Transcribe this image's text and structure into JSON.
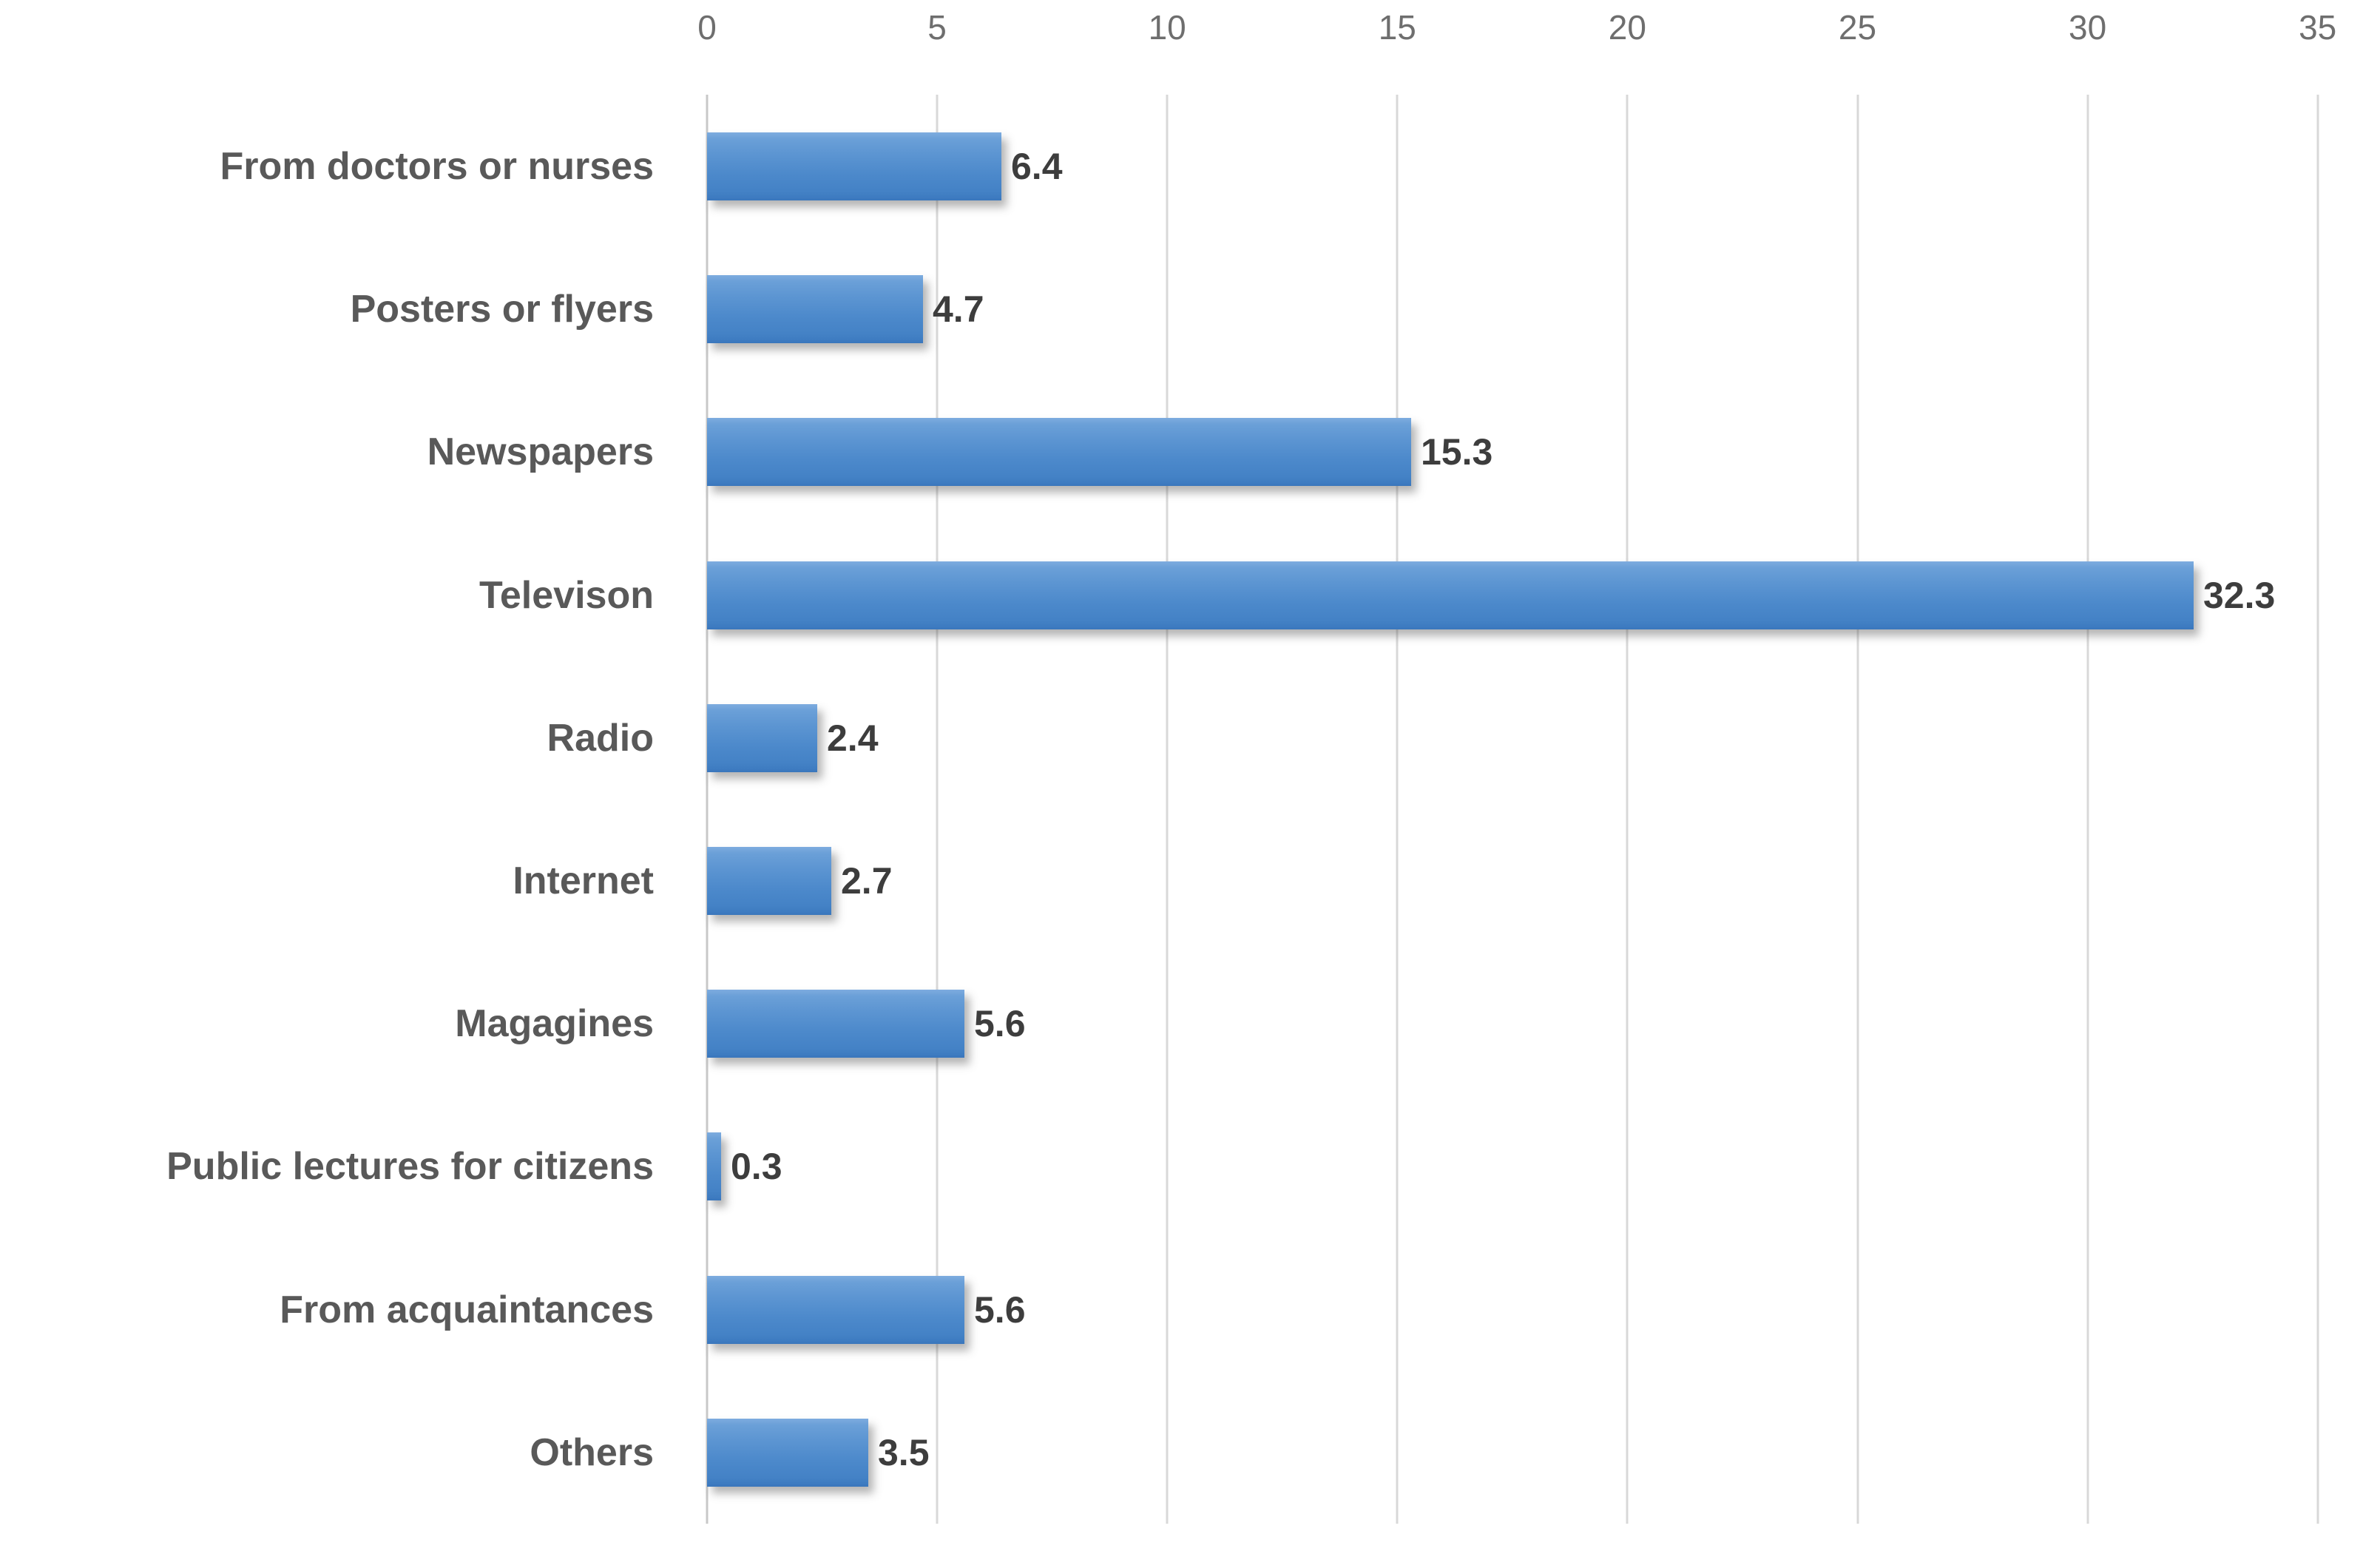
{
  "chart_data": {
    "type": "bar",
    "orientation": "horizontal",
    "title": "",
    "categories": [
      "From doctors or nurses",
      "Posters or flyers",
      "Newspapers",
      "Televison",
      "Radio",
      "Internet",
      "Magagines",
      "Public lectures for citizens",
      "From acquaintances",
      "Others"
    ],
    "values": [
      6.4,
      4.7,
      15.3,
      32.3,
      2.4,
      2.7,
      5.6,
      0.3,
      5.6,
      3.5
    ],
    "x_ticks": [
      0,
      5,
      10,
      15,
      20,
      25,
      30,
      35
    ],
    "xlim": [
      0,
      35
    ],
    "grid": "vertical",
    "legend": "none",
    "colors": {
      "bar_top": "#7EACDF",
      "bar_bottom": "#3A76BC",
      "bar_main": "#4E8BCB",
      "gridline": "#D8D8D8",
      "axis_line": "#C8C8C8",
      "category_label": "#595959",
      "value_label": "#3D3D3D",
      "tick_label": "#6E6E6E",
      "background": "#FFFFFF"
    }
  }
}
